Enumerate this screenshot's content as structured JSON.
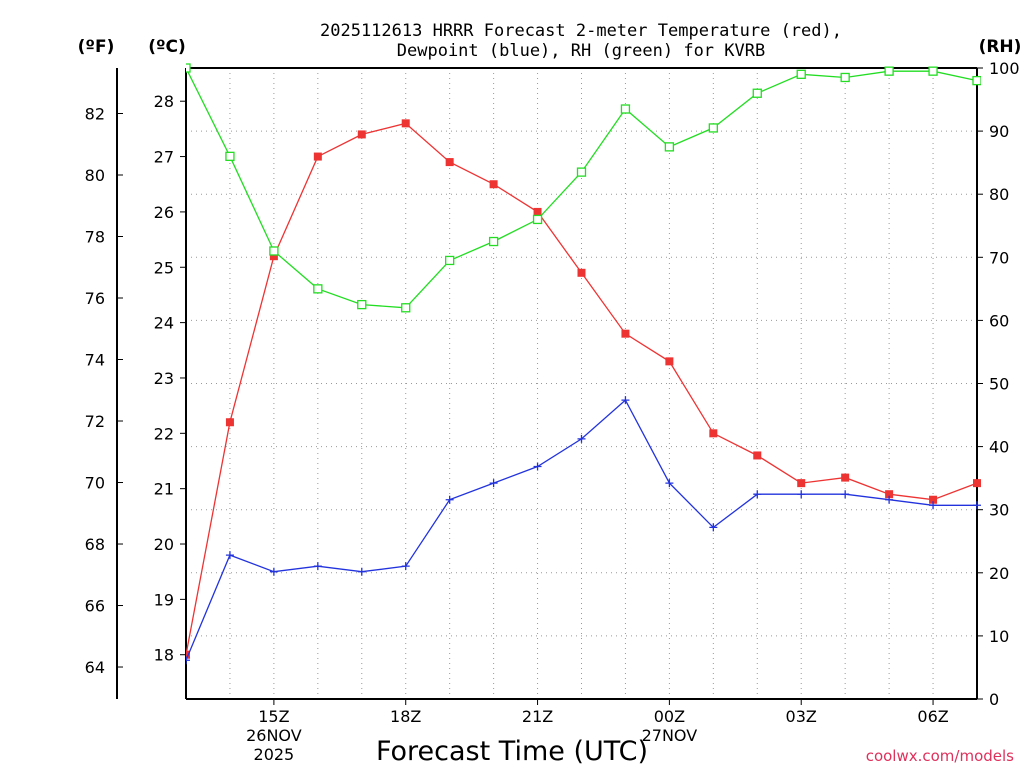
{
  "chart_data": {
    "type": "line",
    "title": [
      "2025112613 HRRR Forecast 2-meter Temperature (red),",
      "Dewpoint (blue), RH (green) for KVRB"
    ],
    "units": {
      "fahrenheit": "(ºF)",
      "celsius": "(ºC)",
      "rh": "(RH)"
    },
    "xlabel": "Forecast Time (UTC)",
    "credit": "coolwx.com/models",
    "x_hours": [
      13,
      14,
      15,
      16,
      17,
      18,
      19,
      20,
      21,
      22,
      23,
      24,
      25,
      26,
      27,
      28,
      29,
      30,
      31
    ],
    "xlim": [
      13,
      31
    ],
    "x_ticks": [
      {
        "hour": 15,
        "lines": [
          "15Z",
          "26NOV",
          "2025"
        ]
      },
      {
        "hour": 18,
        "lines": [
          "18Z"
        ]
      },
      {
        "hour": 21,
        "lines": [
          "21Z"
        ]
      },
      {
        "hour": 24,
        "lines": [
          "00Z",
          "27NOV"
        ]
      },
      {
        "hour": 27,
        "lines": [
          "03Z"
        ]
      },
      {
        "hour": 30,
        "lines": [
          "06Z"
        ]
      }
    ],
    "ylim_celsius": [
      17.2,
      28.6
    ],
    "ylim_rh": [
      0,
      100
    ],
    "left_celsius_ticks": [
      "18",
      "19",
      "20",
      "21",
      "22",
      "23",
      "24",
      "25",
      "26",
      "27",
      "28"
    ],
    "left_fahrenheit_ticks": [
      "64",
      "66",
      "68",
      "70",
      "72",
      "74",
      "76",
      "78",
      "80",
      "82"
    ],
    "right_rh_ticks": [
      "0",
      "10",
      "20",
      "30",
      "40",
      "50",
      "60",
      "70",
      "80",
      "90",
      "100"
    ],
    "series": [
      {
        "name": "Temperature",
        "axis": "celsius",
        "color": "#ee3333",
        "marker": "filled-square",
        "values": [
          18.0,
          22.2,
          25.2,
          27.0,
          27.4,
          27.6,
          26.9,
          26.5,
          26.0,
          24.9,
          23.8,
          23.3,
          22.0,
          21.6,
          21.1,
          21.2,
          20.9,
          20.8,
          21.1
        ]
      },
      {
        "name": "Dewpoint",
        "axis": "celsius",
        "color": "#2233dd",
        "marker": "plus",
        "values": [
          17.9,
          19.8,
          19.5,
          19.6,
          19.5,
          19.6,
          20.8,
          21.1,
          21.4,
          21.9,
          22.6,
          21.1,
          20.3,
          20.9,
          20.9,
          20.9,
          20.8,
          20.7,
          20.7
        ]
      },
      {
        "name": "RH",
        "axis": "rh",
        "color": "#22dd22",
        "marker": "open-square",
        "values": [
          100,
          86,
          71,
          65,
          62.5,
          62,
          69.5,
          72.5,
          76,
          83.5,
          93.5,
          87.5,
          90.5,
          96,
          99,
          98.5,
          99.5,
          99.5,
          98
        ]
      }
    ]
  }
}
